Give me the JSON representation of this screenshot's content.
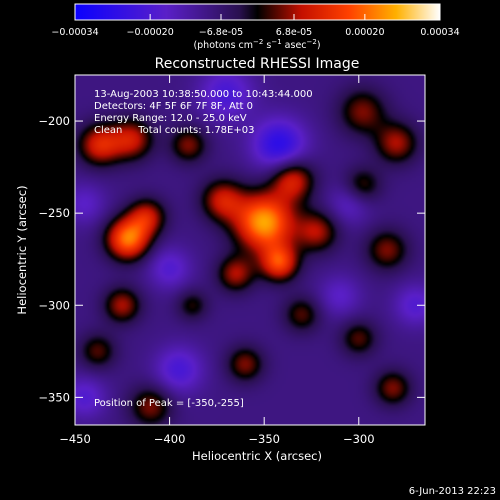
{
  "colorbar": {
    "ticks": [
      "-0.00034",
      "-0.00020",
      "-6.8e-05",
      "6.8e-05",
      "0.00020",
      "0.00034"
    ],
    "tick_values": [
      -0.00034,
      -0.0002,
      -6.8e-05,
      6.8e-05,
      0.0002,
      0.00034
    ],
    "range": [
      -0.00034,
      0.00034
    ],
    "units_prefix": "(photons cm",
    "units_exp1": "−2",
    "units_mid": " s",
    "units_exp2": "−1",
    "units_mid2": " asec",
    "units_exp3": "−2",
    "units_suffix": ")"
  },
  "chart_data": {
    "type": "heatmap",
    "title": "Reconstructed RHESSI Image",
    "xlabel": "Heliocentric X (arcsec)",
    "ylabel": "Heliocentric Y (arcsec)",
    "xlim": [
      -450,
      -265
    ],
    "ylim": [
      -365,
      -175
    ],
    "xticks": [
      -450,
      -400,
      -350,
      -300
    ],
    "xtick_labels": [
      "−450",
      "−400",
      "−350",
      "−300"
    ],
    "yticks": [
      -200,
      -250,
      -300,
      -350
    ],
    "ytick_labels": [
      "−200",
      "−250",
      "−300",
      "−350"
    ],
    "annotations": {
      "line1": "13-Aug-2003 10:38:50.000 to 10:43:44.000",
      "line2": "Detectors: 4F 5F 6F 7F 8F, Att 0",
      "line3": "Energy Range: 12.0 - 25.0 keV",
      "line4": "Clean     Total counts: 1.78E+03",
      "peak": "Position of Peak = [-350,-255]"
    },
    "sources": [
      {
        "x": -350,
        "y": -255,
        "amp": 0.00034,
        "s": 11
      },
      {
        "x": -335,
        "y": -232,
        "amp": 0.0002,
        "s": 8
      },
      {
        "x": -372,
        "y": -243,
        "amp": 0.00018,
        "s": 8
      },
      {
        "x": -342,
        "y": -277,
        "amp": 0.00024,
        "s": 7
      },
      {
        "x": -365,
        "y": -283,
        "amp": 0.00016,
        "s": 7
      },
      {
        "x": -322,
        "y": -260,
        "amp": 0.00016,
        "s": 8
      },
      {
        "x": -422,
        "y": -264,
        "amp": 0.0003,
        "s": 8
      },
      {
        "x": -412,
        "y": -252,
        "amp": 0.00018,
        "s": 7
      },
      {
        "x": -437,
        "y": -213,
        "amp": 0.0002,
        "s": 8
      },
      {
        "x": -420,
        "y": -210,
        "amp": 0.00018,
        "s": 8
      },
      {
        "x": -390,
        "y": -213,
        "amp": 0.00014,
        "s": 7
      },
      {
        "x": -298,
        "y": -195,
        "amp": 0.00014,
        "s": 9
      },
      {
        "x": -280,
        "y": -212,
        "amp": 0.00016,
        "s": 8
      },
      {
        "x": -285,
        "y": -270,
        "amp": 0.00014,
        "s": 8
      },
      {
        "x": -298,
        "y": -235,
        "amp": 0.00012,
        "s": 7
      },
      {
        "x": -425,
        "y": -300,
        "amp": 0.00016,
        "s": 7
      },
      {
        "x": -438,
        "y": -325,
        "amp": 0.00012,
        "s": 7
      },
      {
        "x": -410,
        "y": -355,
        "amp": 0.00014,
        "s": 8
      },
      {
        "x": -360,
        "y": -332,
        "amp": 0.00014,
        "s": 7
      },
      {
        "x": -330,
        "y": -305,
        "amp": 0.00012,
        "s": 7
      },
      {
        "x": -300,
        "y": -318,
        "amp": 0.00012,
        "s": 7
      },
      {
        "x": -282,
        "y": -345,
        "amp": 0.00014,
        "s": 7
      },
      {
        "x": -388,
        "y": -300,
        "amp": 0.0001,
        "s": 6
      },
      {
        "x": -342,
        "y": -213,
        "amp": -0.00018,
        "s": 10
      },
      {
        "x": -370,
        "y": -185,
        "amp": -0.00012,
        "s": 10
      },
      {
        "x": -305,
        "y": -245,
        "amp": -8e-05,
        "s": 8
      },
      {
        "x": -400,
        "y": -280,
        "amp": -0.0001,
        "s": 8
      },
      {
        "x": -395,
        "y": -335,
        "amp": -0.00012,
        "s": 9
      },
      {
        "x": -310,
        "y": -295,
        "amp": -8e-05,
        "s": 8
      },
      {
        "x": -270,
        "y": -300,
        "amp": -0.0001,
        "s": 8
      },
      {
        "x": -445,
        "y": -245,
        "amp": -8e-05,
        "s": 8
      },
      {
        "x": -445,
        "y": -350,
        "amp": -0.0001,
        "s": 8
      }
    ]
  },
  "footer": {
    "date": "6-Jun-2013 22:23"
  }
}
